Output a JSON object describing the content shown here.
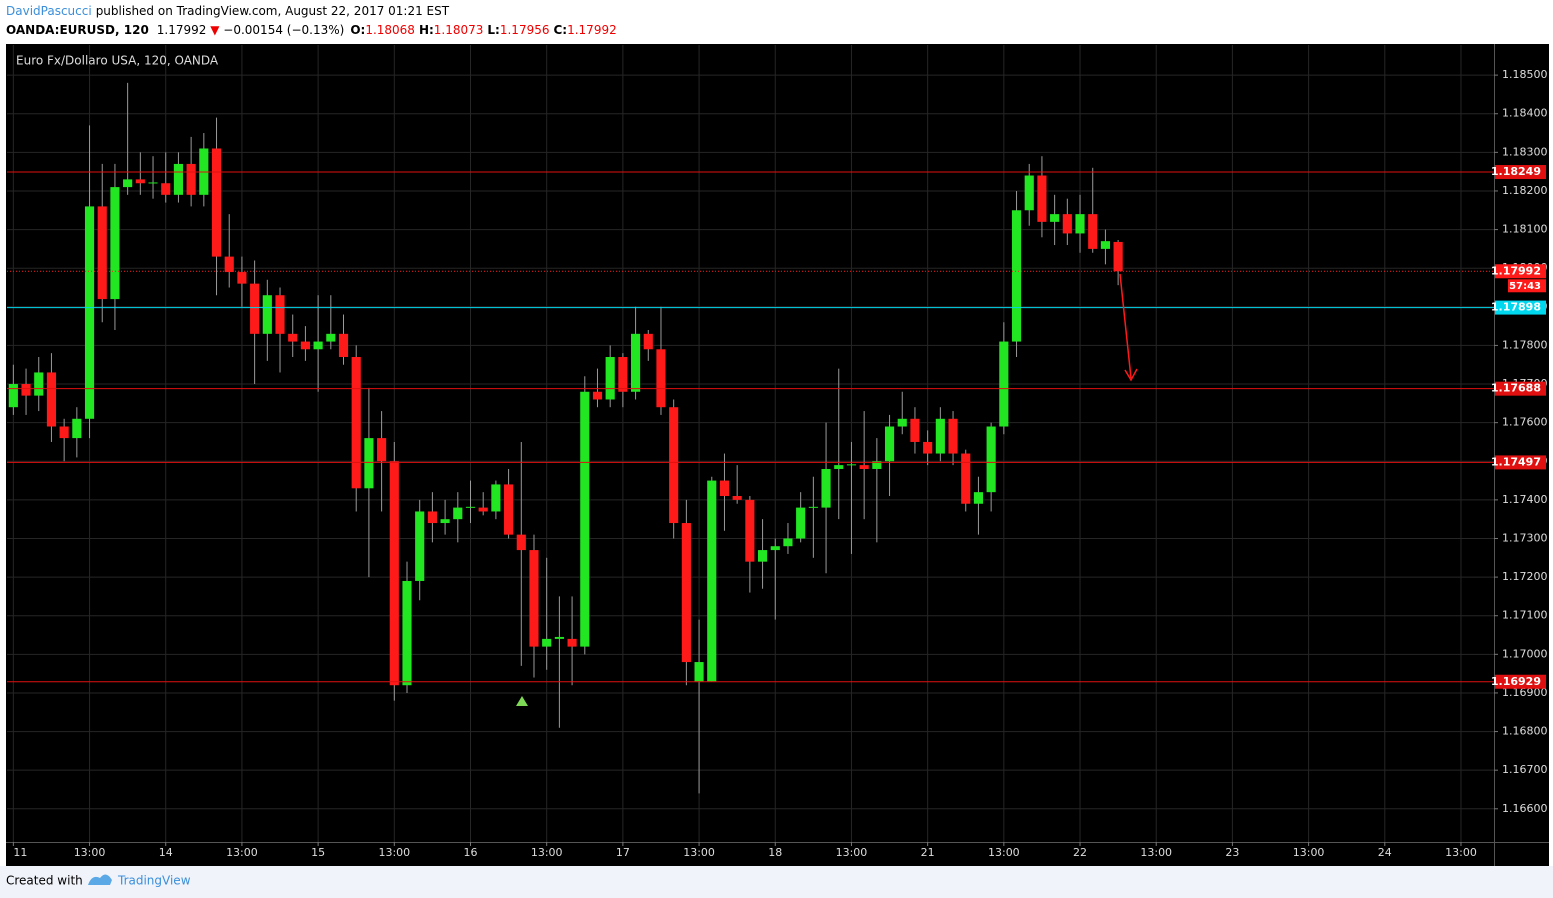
{
  "header": {
    "author": "DavidPascucci",
    "published": "published on TradingView.com, August 22, 2017 01:21 EST",
    "symbol": "OANDA:EURUSD, 120",
    "price": "1.17992",
    "change": "−0.00154 (−0.13%)",
    "o_label": "O:",
    "o": "1.18068",
    "h_label": "H:",
    "h": "1.18073",
    "l_label": "L:",
    "l": "1.17956",
    "c_label": "C:",
    "c": "1.17992"
  },
  "chart_data": {
    "type": "candlestick",
    "title": "Euro Fx/Dollaro USA, 120, OANDA",
    "up_color": "#22e622",
    "down_color": "#ff1a1a",
    "open": [
      1.1764,
      1.177,
      1.1767,
      1.1773,
      1.1759,
      1.1756,
      1.1761,
      1.1816,
      1.1792,
      1.1821,
      1.1823,
      1.1822,
      1.1822,
      1.1819,
      1.1827,
      1.1819,
      1.1831,
      1.1803,
      1.1799,
      1.1796,
      1.1783,
      1.1793,
      1.1783,
      1.1781,
      1.1779,
      1.1781,
      1.1783,
      1.1777,
      1.1743,
      1.1756,
      1.175,
      1.1692,
      1.1719,
      1.1737,
      1.1734,
      1.1735,
      1.1738,
      1.1738,
      1.1737,
      1.1744,
      1.1731,
      1.1727,
      1.1702,
      1.1704,
      1.1704,
      1.1702,
      1.1768,
      1.1766,
      1.1777,
      1.1768,
      1.1783,
      1.1779,
      1.1764,
      1.1734,
      1.1693,
      1.1693,
      1.1745,
      1.1741,
      1.174,
      1.1724,
      1.1727,
      1.1728,
      1.173,
      1.1738,
      1.1738,
      1.1748,
      1.1749,
      1.1749,
      1.1748,
      1.175,
      1.1759,
      1.1761,
      1.1755,
      1.1752,
      1.1761,
      1.1752,
      1.1739,
      1.1742,
      1.1759,
      1.1781,
      1.1815,
      1.1824,
      1.1812,
      1.1814,
      1.1809,
      1.1814,
      1.1805,
      1.18068
    ],
    "high": [
      1.1775,
      1.1774,
      1.1777,
      1.1778,
      1.1761,
      1.1764,
      1.1837,
      1.1827,
      1.1827,
      1.1848,
      1.183,
      1.1829,
      1.183,
      1.183,
      1.1834,
      1.1835,
      1.1839,
      1.1814,
      1.1803,
      1.1802,
      1.1797,
      1.1795,
      1.1788,
      1.1785,
      1.1793,
      1.1793,
      1.1788,
      1.178,
      1.1769,
      1.1763,
      1.1755,
      1.1724,
      1.174,
      1.1742,
      1.174,
      1.1742,
      1.1745,
      1.1742,
      1.1745,
      1.1748,
      1.1755,
      1.1731,
      1.1725,
      1.1715,
      1.1715,
      1.1772,
      1.1774,
      1.178,
      1.1778,
      1.179,
      1.1784,
      1.179,
      1.1766,
      1.174,
      1.1709,
      1.1746,
      1.1752,
      1.1749,
      1.1741,
      1.1735,
      1.173,
      1.1734,
      1.1742,
      1.1746,
      1.176,
      1.1774,
      1.1755,
      1.1763,
      1.1756,
      1.1762,
      1.1768,
      1.1764,
      1.1758,
      1.1764,
      1.1763,
      1.1753,
      1.1746,
      1.176,
      1.1786,
      1.182,
      1.1827,
      1.1829,
      1.1819,
      1.1818,
      1.1819,
      1.1826,
      1.181,
      1.18073
    ],
    "low": [
      1.1762,
      1.1762,
      1.1763,
      1.1755,
      1.175,
      1.1751,
      1.1756,
      1.1786,
      1.1784,
      1.1819,
      1.1819,
      1.1818,
      1.1817,
      1.1817,
      1.1816,
      1.1816,
      1.1793,
      1.1795,
      1.179,
      1.177,
      1.1776,
      1.1773,
      1.1777,
      1.1776,
      1.1768,
      1.1779,
      1.1775,
      1.1737,
      1.172,
      1.1737,
      1.1688,
      1.169,
      1.1714,
      1.1729,
      1.1731,
      1.1729,
      1.1734,
      1.1736,
      1.1735,
      1.173,
      1.1697,
      1.1694,
      1.1696,
      1.1681,
      1.1692,
      1.17,
      1.1764,
      1.1764,
      1.1764,
      1.1766,
      1.1776,
      1.1762,
      1.173,
      1.1692,
      1.1664,
      1.1693,
      1.1732,
      1.1739,
      1.1716,
      1.1717,
      1.1709,
      1.1726,
      1.1729,
      1.1725,
      1.1721,
      1.1735,
      1.1726,
      1.1735,
      1.1729,
      1.1741,
      1.1757,
      1.1752,
      1.1749,
      1.175,
      1.1749,
      1.1737,
      1.1731,
      1.1737,
      1.1757,
      1.1777,
      1.1811,
      1.1808,
      1.1806,
      1.1806,
      1.1804,
      1.1804,
      1.1801,
      1.17956
    ],
    "close": [
      1.177,
      1.1767,
      1.1773,
      1.1759,
      1.1756,
      1.1761,
      1.1816,
      1.1792,
      1.1821,
      1.1823,
      1.1822,
      1.18222,
      1.1819,
      1.1827,
      1.1819,
      1.1831,
      1.1803,
      1.1799,
      1.1796,
      1.1783,
      1.1793,
      1.1783,
      1.1781,
      1.1779,
      1.1781,
      1.1783,
      1.1777,
      1.1743,
      1.1756,
      1.175,
      1.1692,
      1.1719,
      1.1737,
      1.1734,
      1.1735,
      1.1738,
      1.17382,
      1.1737,
      1.1744,
      1.1731,
      1.1727,
      1.1702,
      1.1704,
      1.17045,
      1.1702,
      1.1768,
      1.1766,
      1.1777,
      1.1768,
      1.1783,
      1.1779,
      1.1764,
      1.1734,
      1.1698,
      1.1698,
      1.1745,
      1.1741,
      1.174,
      1.1724,
      1.1727,
      1.1728,
      1.173,
      1.1738,
      1.17382,
      1.1748,
      1.1749,
      1.17492,
      1.1748,
      1.175,
      1.1759,
      1.1761,
      1.1755,
      1.1752,
      1.1761,
      1.1752,
      1.1739,
      1.1742,
      1.1759,
      1.1781,
      1.1815,
      1.1824,
      1.1812,
      1.1814,
      1.1809,
      1.1814,
      1.1805,
      1.1807,
      1.17992
    ],
    "xlim": [
      -0.5,
      116.6
    ],
    "xticks": [
      {
        "value": 0,
        "label": "11"
      },
      {
        "value": 6,
        "label": "13:00"
      },
      {
        "value": 12,
        "label": "14"
      },
      {
        "value": 18,
        "label": "13:00"
      },
      {
        "value": 24,
        "label": "15"
      },
      {
        "value": 30,
        "label": "13:00"
      },
      {
        "value": 36,
        "label": "16"
      },
      {
        "value": 42,
        "label": "13:00"
      },
      {
        "value": 48,
        "label": "17"
      },
      {
        "value": 54,
        "label": "13:00"
      },
      {
        "value": 60,
        "label": "18"
      },
      {
        "value": 66,
        "label": "13:00"
      },
      {
        "value": 72,
        "label": "21"
      },
      {
        "value": 78,
        "label": "13:00"
      },
      {
        "value": 84,
        "label": "22"
      },
      {
        "value": 90,
        "label": "13:00"
      },
      {
        "value": 96,
        "label": "23"
      },
      {
        "value": 102,
        "label": "13:00"
      },
      {
        "value": 108,
        "label": "24"
      },
      {
        "value": 114,
        "label": "13:00"
      }
    ],
    "ylim": [
      1.16514,
      1.18578
    ],
    "yticks": [
      {
        "value": 1.185,
        "label": "1.18500"
      },
      {
        "value": 1.184,
        "label": "1.18400"
      },
      {
        "value": 1.183,
        "label": "1.18300"
      },
      {
        "value": 1.182,
        "label": "1.18200"
      },
      {
        "value": 1.181,
        "label": "1.18100"
      },
      {
        "value": 1.18,
        "label": "1.18000"
      },
      {
        "value": 1.179,
        "label": "1.17900"
      },
      {
        "value": 1.178,
        "label": "1.17800"
      },
      {
        "value": 1.177,
        "label": "1.17700"
      },
      {
        "value": 1.176,
        "label": "1.17600"
      },
      {
        "value": 1.175,
        "label": "1.17500"
      },
      {
        "value": 1.174,
        "label": "1.17400"
      },
      {
        "value": 1.173,
        "label": "1.17300"
      },
      {
        "value": 1.172,
        "label": "1.17200"
      },
      {
        "value": 1.171,
        "label": "1.17100"
      },
      {
        "value": 1.17,
        "label": "1.17000"
      },
      {
        "value": 1.169,
        "label": "1.16900"
      },
      {
        "value": 1.168,
        "label": "1.16800"
      },
      {
        "value": 1.167,
        "label": "1.16700"
      },
      {
        "value": 1.166,
        "label": "1.16600"
      }
    ],
    "grid": true,
    "levels": [
      {
        "value": 1.18249,
        "color": "#e01010"
      },
      {
        "value": 1.17898,
        "color": "#00d8f0"
      },
      {
        "value": 1.17688,
        "color": "#e01010"
      },
      {
        "value": 1.17497,
        "color": "#e01010"
      },
      {
        "value": 1.16929,
        "color": "#e01010"
      }
    ],
    "last_price": {
      "value": 1.17992,
      "color": "#ff1a1a",
      "countdown": "57:43"
    }
  },
  "footer": {
    "created": "Created with",
    "brand": "TradingView"
  }
}
